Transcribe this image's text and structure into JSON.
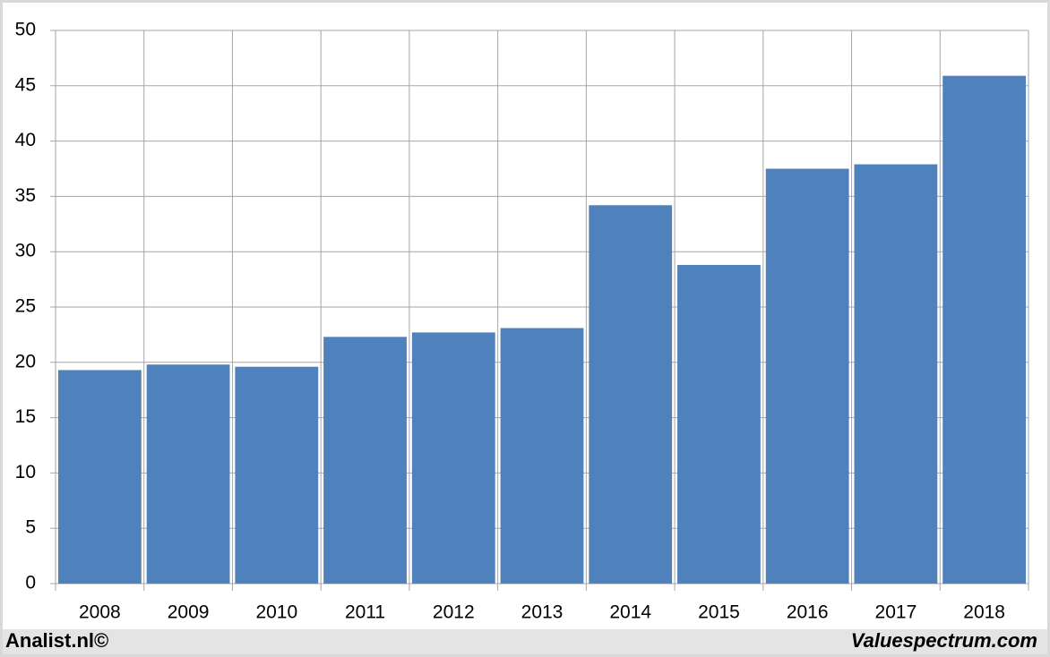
{
  "chart_data": {
    "type": "bar",
    "categories": [
      "2008",
      "2009",
      "2010",
      "2011",
      "2012",
      "2013",
      "2014",
      "2015",
      "2016",
      "2017",
      "2018"
    ],
    "values": [
      19.3,
      19.8,
      19.6,
      22.3,
      22.7,
      23.1,
      34.2,
      28.8,
      37.5,
      37.9,
      45.9
    ],
    "color": "#4f81bd",
    "ylim": [
      0,
      50
    ],
    "yticks": [
      0,
      5,
      10,
      15,
      20,
      25,
      30,
      35,
      40,
      45,
      50
    ],
    "grid": true,
    "annotations": [
      "Analist.nl©",
      "Valuespectrum.com"
    ]
  }
}
